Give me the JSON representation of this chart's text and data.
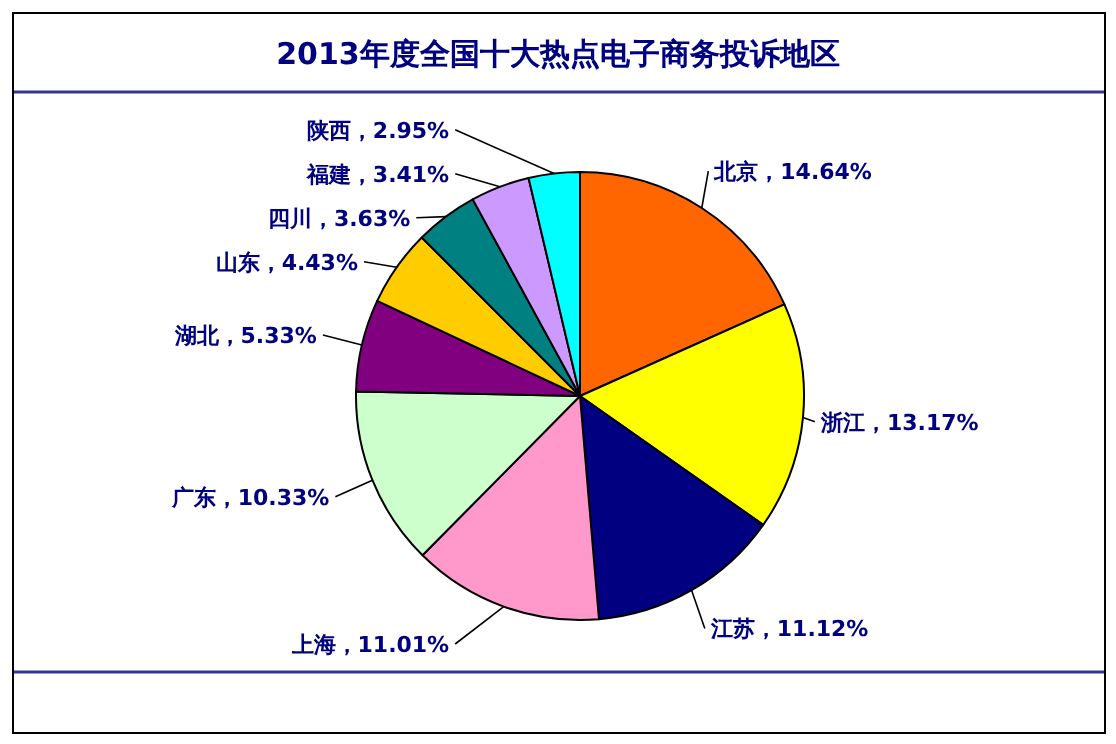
{
  "chart_data": {
    "type": "pie",
    "title": "2013年度全国十大热点电子商务投诉地区",
    "categories": [
      "北京",
      "浙江",
      "江苏",
      "上海",
      "广东",
      "湖北",
      "山东",
      "四川",
      "福建",
      "陕西"
    ],
    "values": [
      14.64,
      13.17,
      11.12,
      11.01,
      10.33,
      5.33,
      4.43,
      3.63,
      3.41,
      2.95
    ],
    "colors": [
      "#ff6600",
      "#ffff00",
      "#000080",
      "#ff99cc",
      "#ccffcc",
      "#800080",
      "#ffcc00",
      "#008080",
      "#cc99ff",
      "#00ffff"
    ],
    "value_labels": [
      "，14.64%",
      "，13.17%",
      "，11.12%",
      "，11.01%",
      "，10.33%",
      "，5.33%",
      "，4.43%",
      "，3.63%",
      "，3.41%",
      "，2.95%"
    ]
  }
}
